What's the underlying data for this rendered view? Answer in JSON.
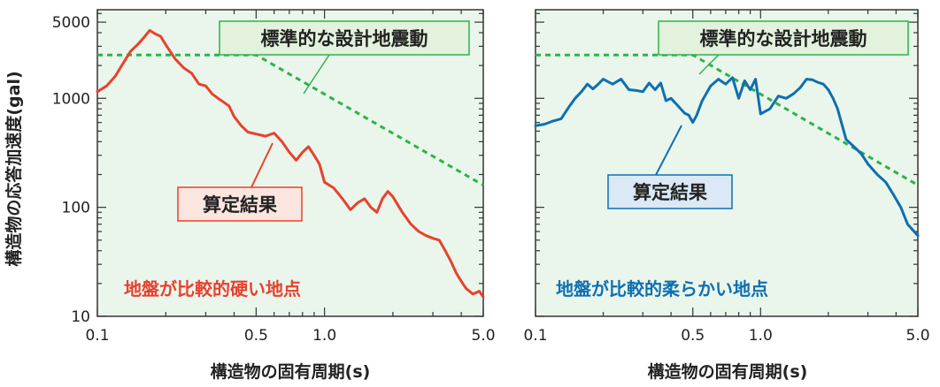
{
  "ylabel": "構造物の応答加速度(gal)",
  "chart_data": [
    {
      "type": "line",
      "xscale": "log",
      "yscale": "log",
      "xlim": [
        0.1,
        5.0
      ],
      "ylim": [
        10,
        6500
      ],
      "xlabel": "構造物の固有周期(s)",
      "ylabel": "構造物の応答加速度(gal)",
      "x_ticks": [
        0.1,
        0.5,
        1.0,
        5.0
      ],
      "x_tick_labels": [
        "0.1",
        "0.5",
        "1.0",
        "5.0"
      ],
      "y_ticks": [
        10,
        100,
        1000,
        5000
      ],
      "y_tick_labels": [
        "10",
        "100",
        "1000",
        "5000"
      ],
      "grid": false,
      "annotation": "地盤が比較的硬い地点",
      "series": [
        {
          "name": "標準的な設計地震動",
          "color": "#2db34a",
          "style": "dashed",
          "x": [
            0.1,
            0.5,
            5.0
          ],
          "y": [
            2500,
            2500,
            160
          ]
        },
        {
          "name": "算定結果",
          "color": "#e8412d",
          "style": "solid",
          "x": [
            0.1,
            0.11,
            0.12,
            0.13,
            0.14,
            0.15,
            0.16,
            0.17,
            0.18,
            0.19,
            0.2,
            0.22,
            0.24,
            0.26,
            0.28,
            0.3,
            0.32,
            0.34,
            0.36,
            0.38,
            0.4,
            0.43,
            0.46,
            0.5,
            0.55,
            0.6,
            0.65,
            0.7,
            0.75,
            0.8,
            0.85,
            0.9,
            0.95,
            1.0,
            1.1,
            1.2,
            1.3,
            1.4,
            1.5,
            1.6,
            1.7,
            1.8,
            1.9,
            2.0,
            2.2,
            2.4,
            2.6,
            2.8,
            3.0,
            3.2,
            3.4,
            3.6,
            3.8,
            4.0,
            4.2,
            4.5,
            4.8,
            5.0
          ],
          "y": [
            1150,
            1300,
            1600,
            2100,
            2700,
            3100,
            3600,
            4200,
            3900,
            3700,
            3100,
            2300,
            1900,
            1700,
            1350,
            1300,
            1100,
            1000,
            920,
            850,
            680,
            560,
            490,
            470,
            450,
            480,
            400,
            320,
            270,
            320,
            360,
            300,
            250,
            170,
            150,
            120,
            95,
            110,
            120,
            100,
            90,
            120,
            140,
            125,
            90,
            70,
            60,
            55,
            52,
            50,
            40,
            32,
            25,
            21,
            18,
            16,
            17,
            15
          ]
        }
      ]
    },
    {
      "type": "line",
      "xscale": "log",
      "yscale": "log",
      "xlim": [
        0.1,
        5.0
      ],
      "ylim": [
        10,
        6500
      ],
      "xlabel": "構造物の固有周期(s)",
      "ylabel": "",
      "x_ticks": [
        0.1,
        0.5,
        1.0,
        5.0
      ],
      "x_tick_labels": [
        "0.1",
        "0.5",
        "1.0",
        "5.0"
      ],
      "y_ticks": [
        10,
        100,
        1000,
        5000
      ],
      "y_tick_labels": [
        "",
        "",
        "",
        ""
      ],
      "grid": false,
      "annotation": "地盤が比較的柔らかい地点",
      "series": [
        {
          "name": "標準的な設計地震動",
          "color": "#2db34a",
          "style": "dashed",
          "x": [
            0.1,
            0.5,
            5.0
          ],
          "y": [
            2500,
            2500,
            160
          ]
        },
        {
          "name": "算定結果",
          "color": "#0f6fb0",
          "style": "solid",
          "x": [
            0.1,
            0.11,
            0.12,
            0.13,
            0.14,
            0.15,
            0.16,
            0.17,
            0.18,
            0.19,
            0.2,
            0.22,
            0.24,
            0.26,
            0.28,
            0.3,
            0.32,
            0.34,
            0.36,
            0.38,
            0.4,
            0.43,
            0.46,
            0.48,
            0.5,
            0.52,
            0.55,
            0.6,
            0.65,
            0.7,
            0.75,
            0.8,
            0.85,
            0.9,
            0.95,
            1.0,
            1.1,
            1.2,
            1.3,
            1.4,
            1.5,
            1.6,
            1.7,
            1.8,
            1.9,
            2.0,
            2.1,
            2.2,
            2.4,
            2.6,
            2.8,
            3.0,
            3.3,
            3.6,
            3.9,
            4.2,
            4.5,
            5.0
          ],
          "y": [
            560,
            580,
            620,
            650,
            820,
            1000,
            1150,
            1350,
            1220,
            1350,
            1500,
            1350,
            1500,
            1200,
            1180,
            1150,
            1380,
            1200,
            1380,
            950,
            1000,
            850,
            730,
            700,
            600,
            700,
            950,
            1300,
            1500,
            1350,
            1550,
            1000,
            1450,
            1200,
            1500,
            720,
            800,
            1050,
            1000,
            1100,
            1250,
            1500,
            1480,
            1400,
            1350,
            1200,
            1000,
            800,
            420,
            360,
            310,
            250,
            200,
            170,
            130,
            100,
            70,
            55
          ]
        }
      ]
    }
  ],
  "panels": [
    {
      "design_callout": "標準的な設計地震動",
      "result_callout": "算定結果",
      "annotation": "地盤が比較的硬い地点",
      "xlabel": "構造物の固有周期(s)"
    },
    {
      "design_callout": "標準的な設計地震動",
      "result_callout": "算定結果",
      "annotation": "地盤が比較的柔らかい地点",
      "xlabel": "構造物の固有周期(s)"
    }
  ],
  "colors": {
    "plot_background": "#eaf6ec",
    "design_line": "#2db34a",
    "design_box_fill": "#e2f2dd",
    "design_box_stroke": "#2db34a",
    "result_hard": "#e8412d",
    "result_hard_box_fill": "#fbe6df",
    "result_soft": "#0f6fb0",
    "result_soft_box_fill": "#dbe9f6",
    "annotation_hard": "#e8412d",
    "annotation_soft": "#0f6fb0"
  }
}
